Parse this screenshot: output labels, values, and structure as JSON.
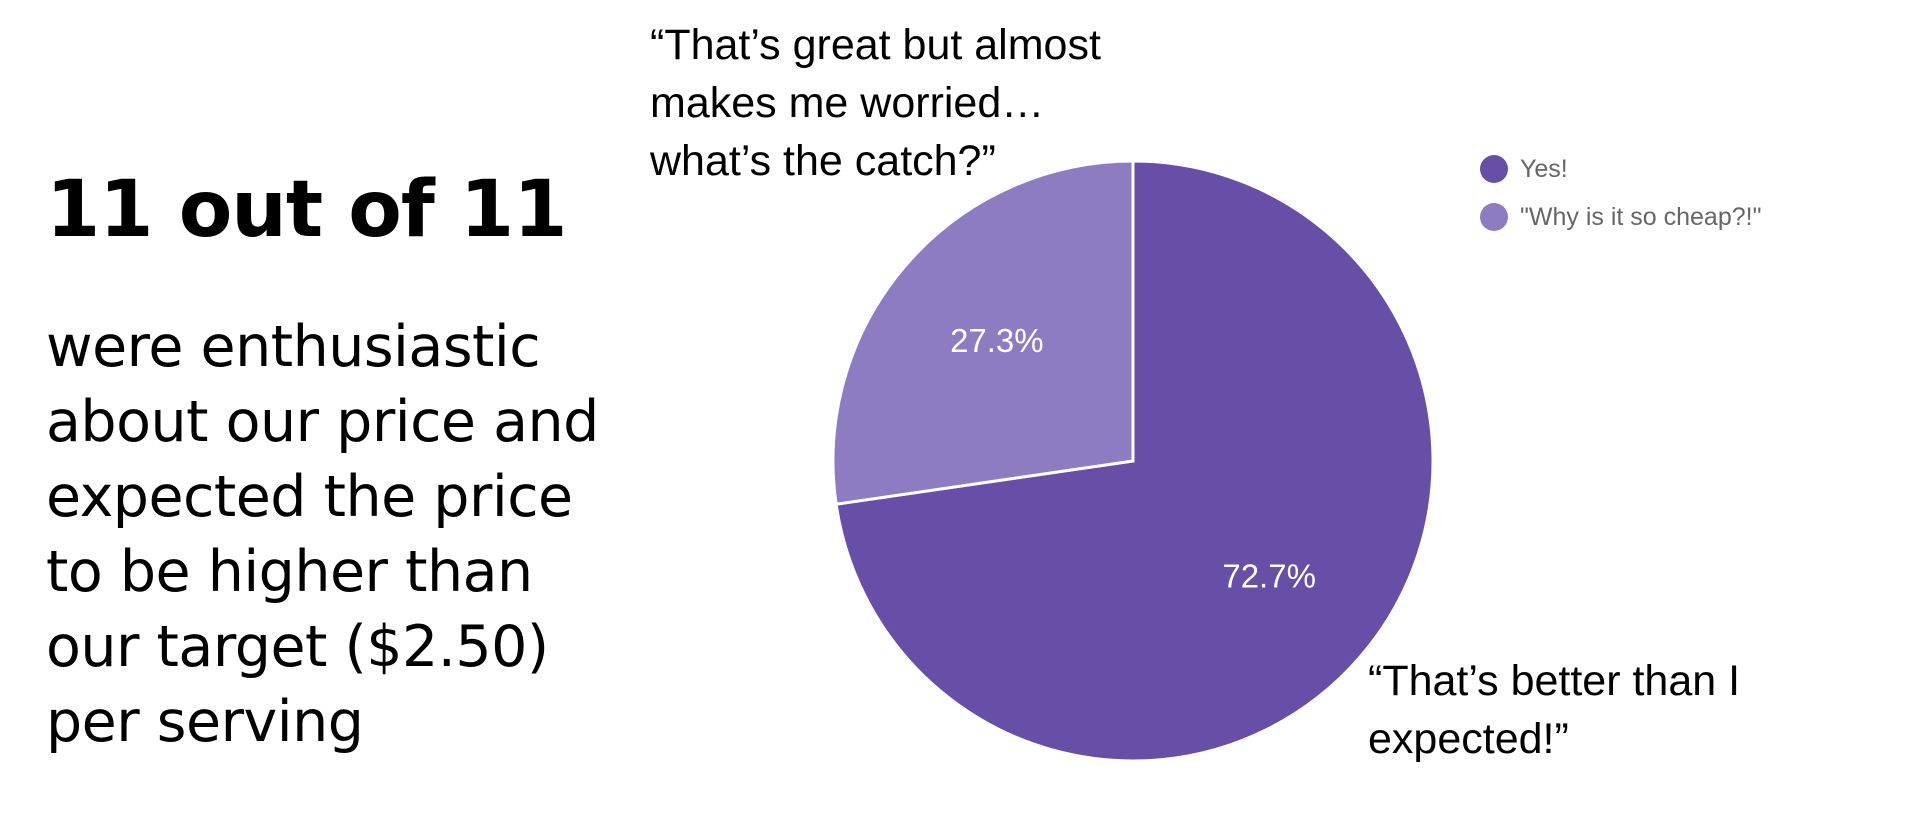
{
  "headline": "11 out of 11",
  "body_lines": [
    "were enthusiastic",
    "about our price and",
    "expected the price",
    "to be higher than",
    "our target ($2.50)",
    "per serving"
  ],
  "quotes": {
    "top_lines": [
      "“That’s great but almost",
      "makes me worried…",
      "what’s the catch?”"
    ],
    "bottom_lines": [
      "“That’s better than I",
      "expected!”"
    ]
  },
  "chart_data": {
    "type": "pie",
    "labels": [
      "Yes!",
      "\"Why is it so cheap?!\""
    ],
    "values": [
      72.7,
      27.3
    ],
    "value_labels": [
      "72.7%",
      "27.3%"
    ],
    "colors": [
      "#674ea7",
      "#8e7cc3"
    ],
    "start": "12 o'clock",
    "direction": "clockwise",
    "legend_position": "right"
  }
}
